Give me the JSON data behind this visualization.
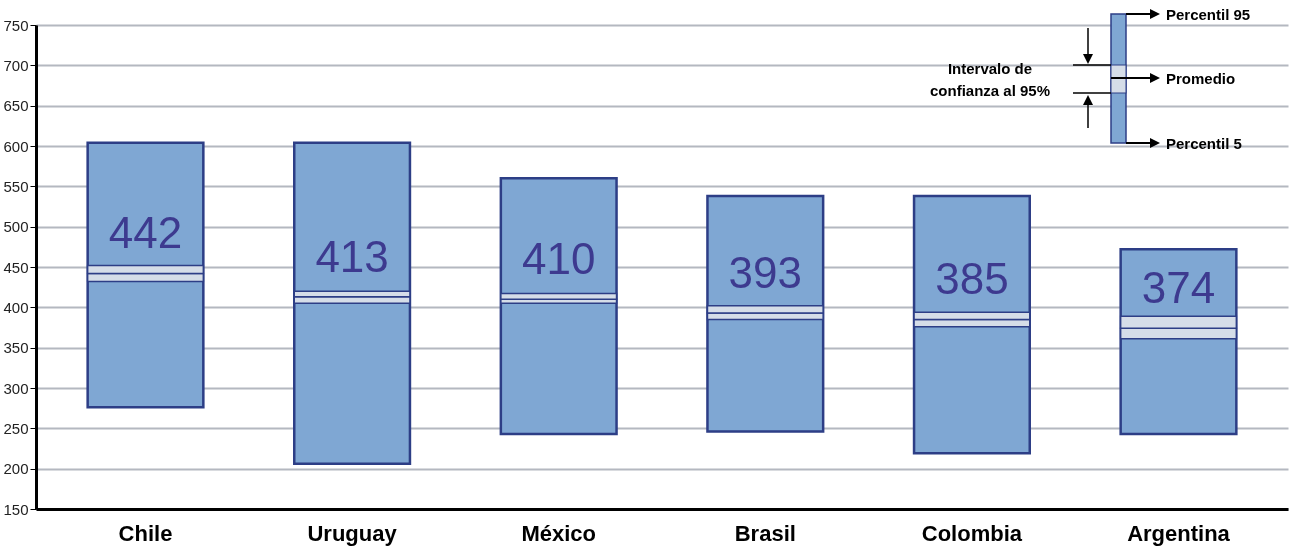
{
  "chart_data": {
    "type": "bar",
    "categories": [
      "Chile",
      "Uruguay",
      "México",
      "Brasil",
      "Colombia",
      "Argentina"
    ],
    "series": [
      {
        "color": "#7fa7d3",
        "base": [
          276,
          206,
          243,
          246,
          219,
          243
        ],
        "values": [
          328,
          398,
          317,
          292,
          319,
          229
        ]
      },
      {
        "color": "#d5dde8",
        "base": [
          432,
          405,
          405,
          385,
          376,
          361
        ],
        "values": [
          10,
          8,
          5,
          8,
          9,
          13
        ]
      },
      {
        "color": "#d5dde8",
        "base": [
          442,
          413,
          410,
          393,
          385,
          374
        ],
        "values": [
          10,
          7,
          7,
          9,
          9,
          15
        ]
      }
    ],
    "ylim": [
      150,
      750
    ],
    "yticks": [
      150,
      200,
      250,
      300,
      350,
      400,
      450,
      500,
      550,
      600,
      650,
      700,
      750
    ],
    "grid": "y",
    "annotations": [
      {
        "text": "442",
        "x": "Chile",
        "y": 442
      },
      {
        "text": "413",
        "x": "Uruguay",
        "y": 413
      },
      {
        "text": "410",
        "x": "México",
        "y": 410
      },
      {
        "text": "393",
        "x": "Brasil",
        "y": 393
      },
      {
        "text": "385",
        "x": "Colombia",
        "y": 385
      },
      {
        "text": "374",
        "x": "Argentina",
        "y": 374
      },
      "Percentil 95",
      "Promedio",
      "Intervalo de confianza al 95%",
      "Percentil 5"
    ]
  }
}
